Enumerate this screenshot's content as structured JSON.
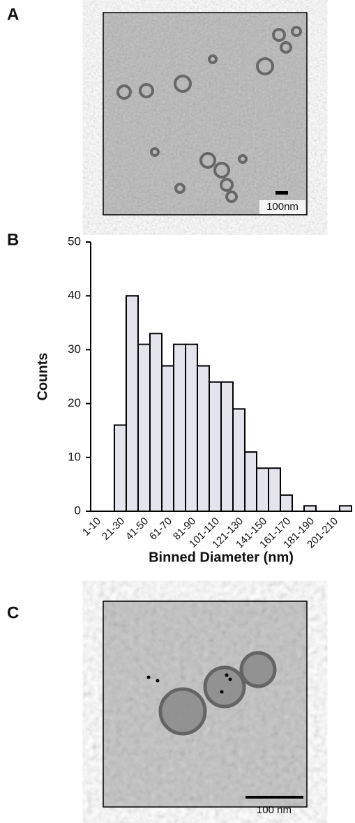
{
  "panel_labels": [
    "A",
    "B",
    "C"
  ],
  "images": [
    {
      "scale_label": "100nm"
    },
    {
      "scale_label": "100 nm"
    }
  ],
  "chart_data": {
    "type": "bar",
    "categories": [
      "1-10",
      null,
      "21-30",
      null,
      "41-50",
      null,
      "61-70",
      null,
      "81-90",
      null,
      "101-110",
      null,
      "121-130",
      null,
      "141-150",
      null,
      "161-170",
      null,
      "181-190",
      null,
      "201-210",
      null
    ],
    "values": [
      0,
      0,
      16,
      40,
      31,
      33,
      27,
      31,
      31,
      27,
      24,
      24,
      19,
      11,
      8,
      8,
      3,
      0,
      1,
      0,
      0,
      1
    ],
    "color": "#e4e4ec",
    "ylabel": "Counts",
    "xlabel": "Binned Diameter (nm)",
    "ylim": [
      0,
      50
    ],
    "yticks": [
      0,
      10,
      20,
      30,
      40,
      50
    ]
  }
}
